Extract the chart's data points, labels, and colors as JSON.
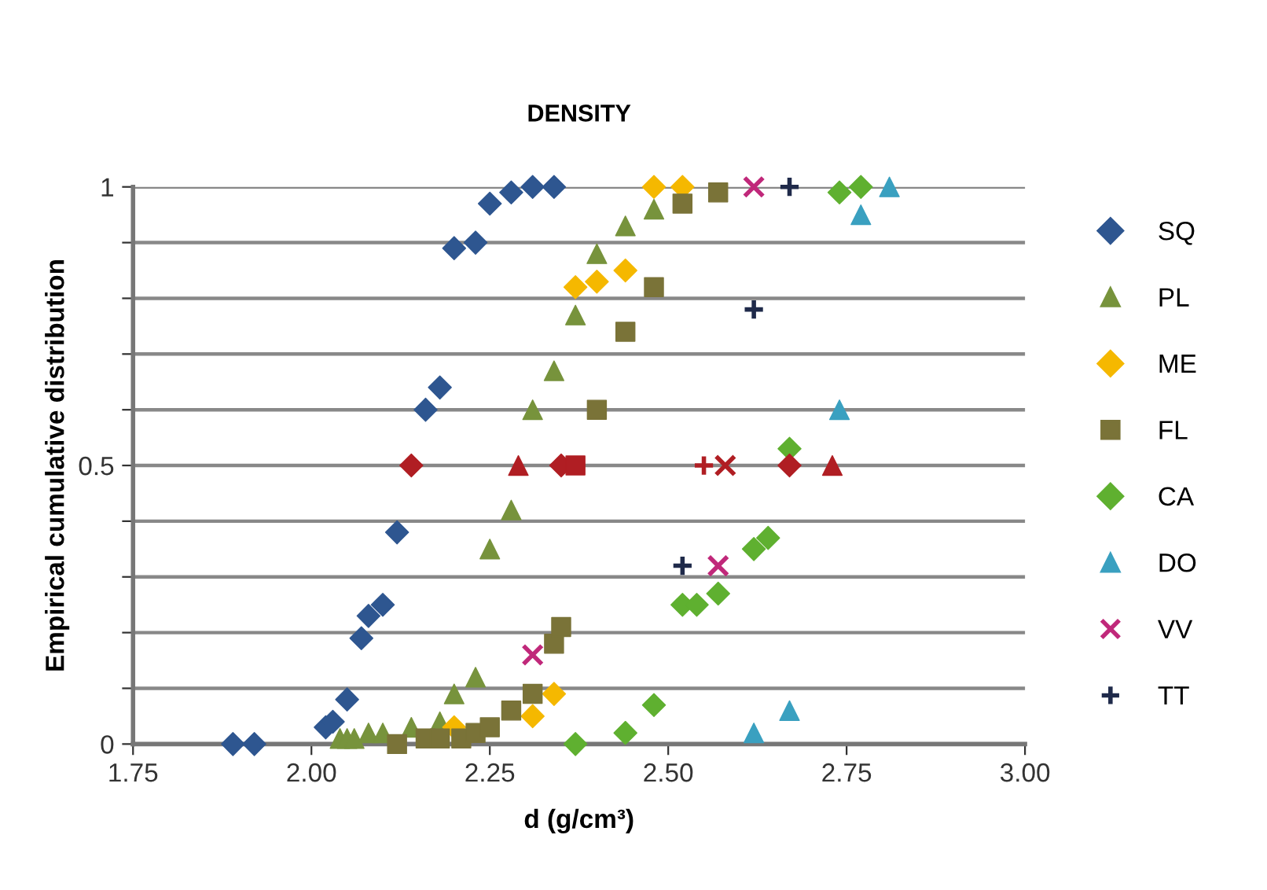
{
  "chart_data": {
    "type": "scatter",
    "title": "DENSITY",
    "xlabel": "d (g/cm³)",
    "ylabel": "Empirical cumulative distribution",
    "xlim": [
      1.75,
      3.0
    ],
    "xticks": [
      1.75,
      {
        "value": 2.0,
        "label": "2.00"
      },
      2.25,
      {
        "value": 2.5,
        "label": "2.50"
      },
      2.75,
      {
        "value": 3.0,
        "label": "3.00"
      }
    ],
    "ylim": [
      0,
      1
    ],
    "yticks": [
      0,
      {
        "value": 0.1,
        "label": null
      },
      {
        "value": 0.2,
        "label": null
      },
      {
        "value": 0.3,
        "label": null
      },
      {
        "value": 0.4,
        "label": null
      },
      0.5,
      {
        "value": 0.6,
        "label": null
      },
      {
        "value": 0.7,
        "label": null
      },
      {
        "value": 0.8,
        "label": null
      },
      {
        "value": 0.9,
        "label": null
      },
      1
    ],
    "grid": "y",
    "legend": "right",
    "series": [
      {
        "name": "SQ",
        "color": "#2e5690",
        "marker": "diamond",
        "x": [
          1.89,
          1.92,
          2.02,
          2.03,
          2.05,
          2.07,
          2.08,
          2.1,
          2.12,
          2.16,
          2.18,
          2.2,
          2.23,
          2.25,
          2.28,
          2.31,
          2.34
        ],
        "values": [
          0,
          0,
          0.03,
          0.04,
          0.08,
          0.19,
          0.23,
          0.25,
          0.38,
          0.6,
          0.64,
          0.89,
          0.9,
          0.97,
          0.99,
          1,
          1
        ]
      },
      {
        "name": "PL",
        "color": "#77933c",
        "marker": "triangle",
        "x": [
          2.04,
          2.05,
          2.06,
          2.08,
          2.1,
          2.12,
          2.14,
          2.16,
          2.18,
          2.2,
          2.23,
          2.25,
          2.28,
          2.31,
          2.34,
          2.37,
          2.4,
          2.44,
          2.48
        ],
        "values": [
          0.01,
          0.01,
          0.01,
          0.02,
          0.02,
          null,
          0.03,
          null,
          0.04,
          0.09,
          0.12,
          0.35,
          0.42,
          0.6,
          0.67,
          0.77,
          0.88,
          0.93,
          0.96
        ]
      },
      {
        "name": "ME",
        "color": "#f5b800",
        "marker": "diamond",
        "x": [
          2.2,
          2.31,
          2.34,
          2.37,
          2.4,
          2.44,
          2.48,
          2.52
        ],
        "values": [
          0.03,
          0.05,
          0.09,
          0.82,
          0.83,
          0.85,
          1,
          1
        ]
      },
      {
        "name": "FL",
        "color": "#7a7338",
        "marker": "square",
        "x": [
          2.12,
          2.16,
          2.18,
          2.21,
          2.23,
          2.25,
          2.28,
          2.31,
          2.34,
          2.35,
          2.4,
          2.44,
          2.48,
          2.52,
          2.57
        ],
        "values": [
          0,
          0.01,
          0.01,
          0.01,
          0.02,
          0.03,
          0.06,
          0.09,
          0.18,
          0.21,
          0.6,
          0.74,
          0.82,
          0.97,
          0.99
        ]
      },
      {
        "name": "CA",
        "color": "#5fb030",
        "marker": "diamond",
        "x": [
          2.37,
          2.44,
          2.48,
          2.52,
          2.54,
          2.57,
          2.62,
          2.64,
          2.67,
          2.74,
          2.77
        ],
        "values": [
          0,
          0.02,
          0.07,
          0.25,
          0.25,
          0.27,
          0.35,
          0.37,
          0.53,
          0.99,
          1
        ]
      },
      {
        "name": "DO",
        "color": "#3aa0c0",
        "marker": "triangle",
        "x": [
          2.62,
          2.67,
          2.74,
          2.77,
          2.81
        ],
        "values": [
          0.02,
          0.06,
          0.6,
          0.95,
          1
        ]
      },
      {
        "name": "VV",
        "color": "#c0287a",
        "marker": "cross",
        "x": [
          2.31,
          2.57,
          2.62
        ],
        "values": [
          0.16,
          0.32,
          1
        ]
      },
      {
        "name": "TT",
        "color": "#1f2a4a",
        "marker": "plus",
        "x": [
          2.52,
          2.62,
          2.67
        ],
        "values": [
          0.32,
          0.78,
          1
        ]
      },
      {
        "color": "#b01e23",
        "marker": "diamond",
        "x": [
          2.14,
          2.67
        ],
        "values": [
          0.5,
          0.5
        ]
      },
      {
        "color": "#b01e23",
        "marker": "triangle",
        "x": [
          2.29,
          2.73
        ],
        "values": [
          0.5,
          0.5
        ]
      },
      {
        "color": "#b01e23",
        "marker": "diamond",
        "x": [
          2.35
        ],
        "values": [
          0.5
        ]
      },
      {
        "color": "#b01e23",
        "marker": "square",
        "x": [
          2.37
        ],
        "values": [
          0.5
        ]
      },
      {
        "color": "#b01e23",
        "marker": "plus",
        "x": [
          2.55
        ],
        "values": [
          0.5
        ]
      },
      {
        "color": "#b01e23",
        "marker": "cross",
        "x": [
          2.58
        ],
        "values": [
          0.5
        ]
      }
    ]
  }
}
